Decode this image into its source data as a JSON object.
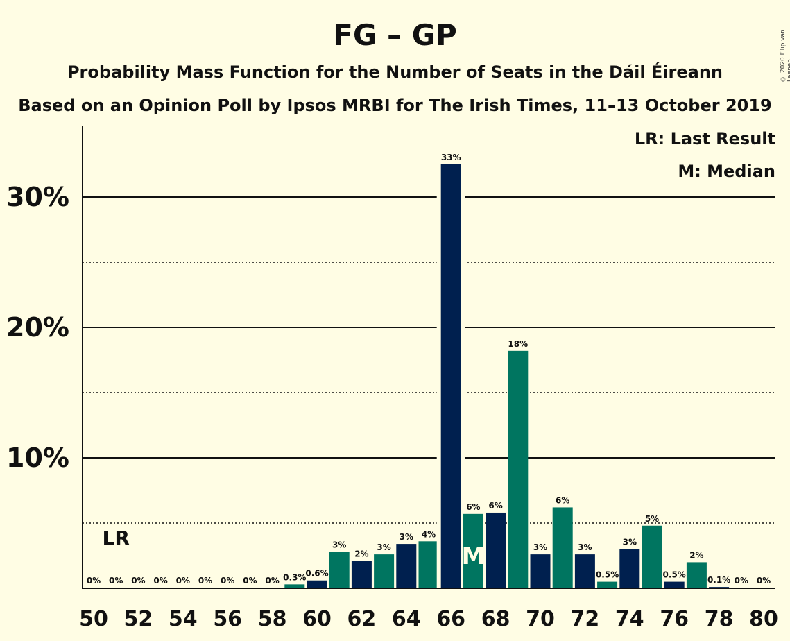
{
  "chart_data": {
    "type": "bar",
    "title": "FG – GP",
    "subtitle": "Probability Mass Function for the Number of Seats in the Dáil Éireann",
    "subtitle2": "Based on an Opinion Poll by Ipsos MRBI for The Irish Times, 11–13 October 2019",
    "copyright": "© 2020 Filip van Laenen",
    "legend": {
      "placement": "top-right",
      "lr": "LR: Last Result",
      "m": "M: Median"
    },
    "x": [
      50,
      51,
      52,
      53,
      54,
      55,
      56,
      57,
      58,
      59,
      60,
      61,
      62,
      63,
      64,
      65,
      66,
      67,
      68,
      69,
      70,
      71,
      72,
      73,
      74,
      75,
      76,
      77,
      78,
      79,
      80
    ],
    "values": [
      0,
      0,
      0,
      0,
      0,
      0,
      0,
      0,
      0,
      0.3,
      0.6,
      2.8,
      2.1,
      2.6,
      3.4,
      3.6,
      32.5,
      5.7,
      5.8,
      18.2,
      2.6,
      6.2,
      2.6,
      0.5,
      3.0,
      4.8,
      0.5,
      2.0,
      0.1,
      0,
      0
    ],
    "labels": [
      "0%",
      "0%",
      "0%",
      "0%",
      "0%",
      "0%",
      "0%",
      "0%",
      "0%",
      "0.3%",
      "0.6%",
      "3%",
      "2%",
      "3%",
      "3%",
      "4%",
      "33%",
      "6%",
      "6%",
      "18%",
      "3%",
      "6%",
      "3%",
      "0.5%",
      "3%",
      "5%",
      "0.5%",
      "2%",
      "0.1%",
      "0%",
      "0%"
    ],
    "xticks": [
      50,
      52,
      54,
      56,
      58,
      60,
      62,
      64,
      66,
      68,
      70,
      72,
      74,
      76,
      78,
      80
    ],
    "yticks": [
      {
        "value": 10,
        "label": "10%"
      },
      {
        "value": 20,
        "label": "20%"
      },
      {
        "value": 30,
        "label": "30%"
      }
    ],
    "minor_gridlines": [
      5,
      15,
      25
    ],
    "ylim": [
      0,
      35
    ],
    "last_result_seat": 51,
    "last_result_label": "LR",
    "median_seat": 67,
    "median_label": "M",
    "colors": {
      "even": "#00204F",
      "odd": "#007560",
      "background": "#FFFDE4",
      "axis": "#111111"
    }
  }
}
